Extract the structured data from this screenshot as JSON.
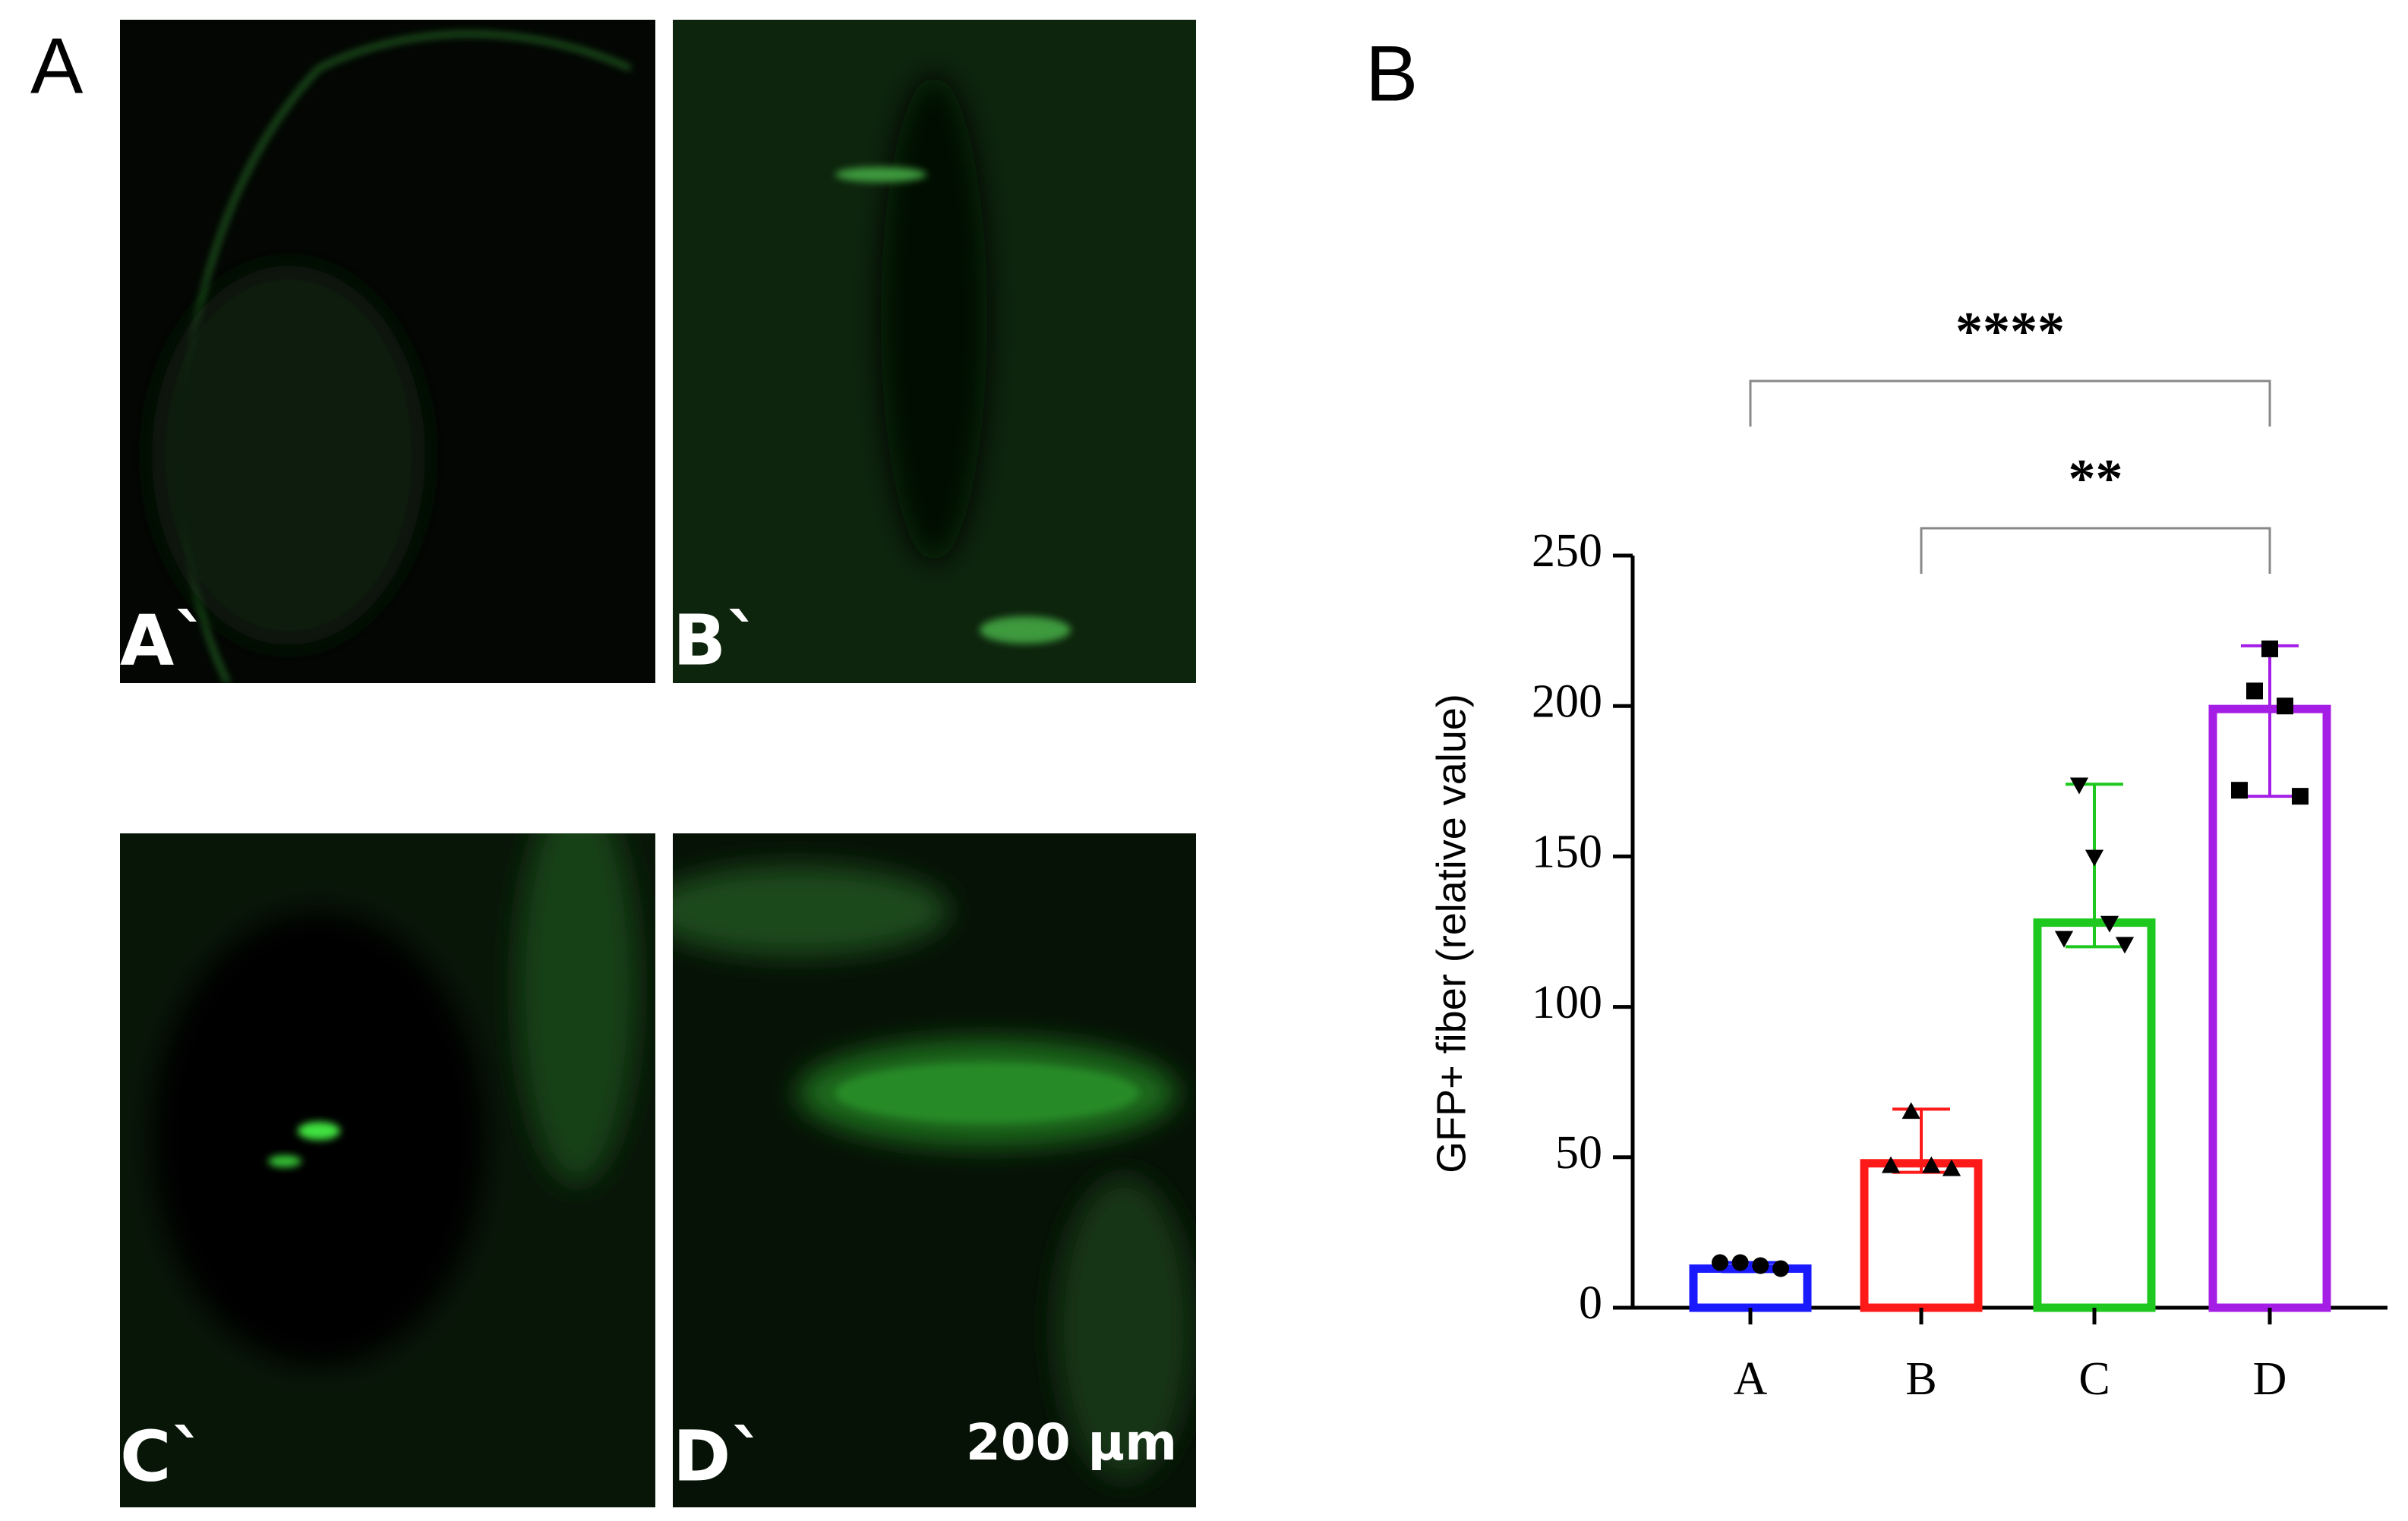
{
  "figure": {
    "panel_a_label": "A",
    "panel_b_label": "B",
    "images": [
      "A`",
      "B`",
      "C`",
      "D`"
    ],
    "scale_bar": "200 µm"
  },
  "chart_data": {
    "type": "bar",
    "ylabel": "GFP+ fiber (relative value)",
    "categories": [
      "A",
      "B",
      "C",
      "D"
    ],
    "values": [
      13,
      48,
      128,
      199
    ],
    "colors": [
      "#1a1aff",
      "#ff1a1a",
      "#1ec81e",
      "#a51ee6"
    ],
    "markers": [
      "circle",
      "triangle",
      "triangle-down",
      "square"
    ],
    "error_low": [
      12,
      45,
      120,
      170
    ],
    "error_high": [
      15,
      66,
      174,
      220
    ],
    "points": [
      [
        15,
        15,
        14,
        13
      ],
      [
        47,
        65,
        47,
        46
      ],
      [
        123,
        174,
        150,
        128,
        121
      ],
      [
        172,
        205,
        219,
        200,
        170
      ]
    ],
    "ylim": [
      0,
      250
    ],
    "yticks": [
      0,
      50,
      100,
      150,
      200,
      250
    ],
    "annotations": [
      {
        "text": "****",
        "from": "A",
        "to": "D"
      },
      {
        "text": "**",
        "from": "B",
        "to": "D"
      }
    ]
  }
}
